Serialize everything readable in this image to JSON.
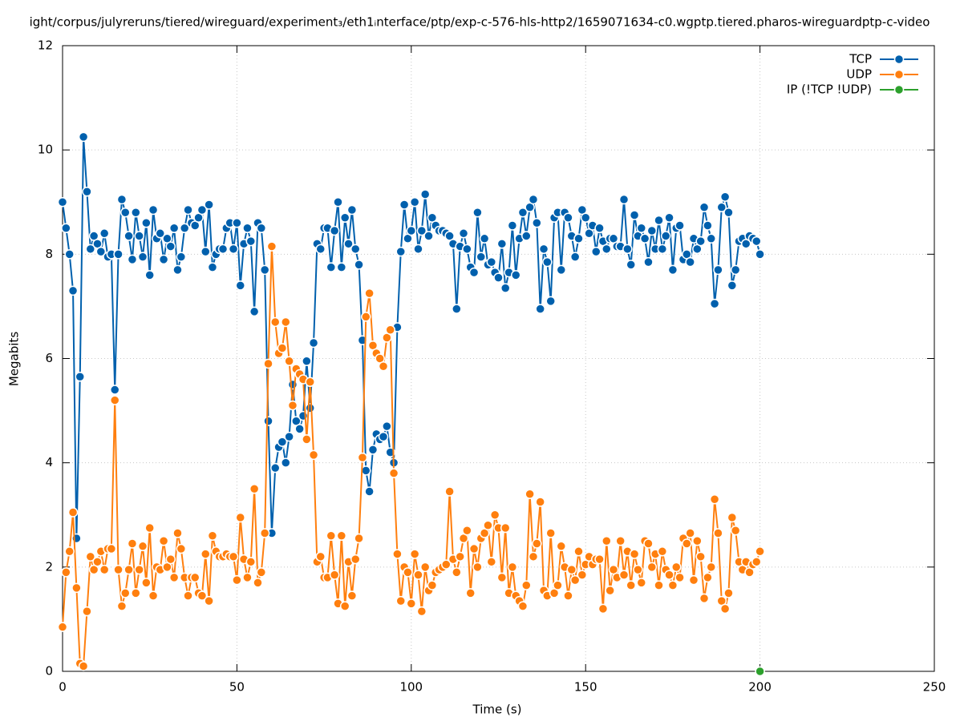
{
  "chart_data": {
    "type": "line",
    "title": "ight/corpus/julyreruns/tiered/wireguard/experiment₃/eth1ᵢnterface/ptp/exp-c-576-hls-http2/1659071634-c0.wgptp.tiered.pharos-wireguardptp-c-video",
    "xlabel": "Time (s)",
    "ylabel": "Megabits",
    "xlim": [
      0,
      250
    ],
    "xticks": [
      0,
      50,
      100,
      150,
      200,
      250
    ],
    "ylim": [
      0,
      12
    ],
    "yticks": [
      0,
      2,
      4,
      6,
      8,
      10,
      12
    ],
    "grid": true,
    "legend": "top right",
    "x": [
      0,
      1,
      2,
      3,
      4,
      5,
      6,
      7,
      8,
      9,
      10,
      11,
      12,
      13,
      14,
      15,
      16,
      17,
      18,
      19,
      20,
      21,
      22,
      23,
      24,
      25,
      26,
      27,
      28,
      29,
      30,
      31,
      32,
      33,
      34,
      35,
      36,
      37,
      38,
      39,
      40,
      41,
      42,
      43,
      44,
      45,
      46,
      47,
      48,
      49,
      50,
      51,
      52,
      53,
      54,
      55,
      56,
      57,
      58,
      59,
      60,
      61,
      62,
      63,
      64,
      65,
      66,
      67,
      68,
      69,
      70,
      71,
      72,
      73,
      74,
      75,
      76,
      77,
      78,
      79,
      80,
      81,
      82,
      83,
      84,
      85,
      86,
      87,
      88,
      89,
      90,
      91,
      92,
      93,
      94,
      95,
      96,
      97,
      98,
      99,
      100,
      101,
      102,
      103,
      104,
      105,
      106,
      107,
      108,
      109,
      110,
      111,
      112,
      113,
      114,
      115,
      116,
      117,
      118,
      119,
      120,
      121,
      122,
      123,
      124,
      125,
      126,
      127,
      128,
      129,
      130,
      131,
      132,
      133,
      134,
      135,
      136,
      137,
      138,
      139,
      140,
      141,
      142,
      143,
      144,
      145,
      146,
      147,
      148,
      149,
      150,
      151,
      152,
      153,
      154,
      155,
      156,
      157,
      158,
      159,
      160,
      161,
      162,
      163,
      164,
      165,
      166,
      167,
      168,
      169,
      170,
      171,
      172,
      173,
      174,
      175,
      176,
      177,
      178,
      179,
      180,
      181,
      182,
      183,
      184,
      185,
      186,
      187,
      188,
      189,
      190,
      191,
      192,
      193,
      194,
      195,
      196,
      197,
      198,
      199,
      200
    ],
    "series": [
      {
        "name": "TCP",
        "color": "#0060ad",
        "values": [
          9.0,
          8.5,
          8.0,
          7.3,
          2.55,
          5.65,
          10.25,
          9.2,
          8.1,
          8.35,
          8.2,
          8.05,
          8.4,
          7.95,
          8.0,
          5.4,
          8.0,
          9.05,
          8.8,
          8.35,
          7.9,
          8.8,
          8.35,
          7.95,
          8.6,
          7.6,
          8.85,
          8.3,
          8.4,
          7.9,
          8.3,
          8.15,
          8.5,
          7.7,
          7.95,
          8.5,
          8.85,
          8.6,
          8.55,
          8.7,
          8.85,
          8.05,
          8.95,
          7.75,
          8.0,
          8.1,
          8.1,
          8.5,
          8.6,
          8.1,
          8.6,
          7.4,
          8.2,
          8.5,
          8.25,
          6.9,
          8.6,
          8.5,
          7.7,
          4.8,
          2.65,
          3.9,
          4.3,
          4.4,
          4.0,
          4.5,
          5.5,
          4.8,
          4.65,
          4.9,
          5.95,
          5.05,
          6.3,
          8.2,
          8.1,
          8.5,
          8.5,
          7.75,
          8.45,
          9.0,
          7.75,
          8.7,
          8.2,
          8.85,
          8.1,
          7.8,
          6.35,
          3.85,
          3.45,
          4.25,
          4.55,
          4.45,
          4.5,
          4.7,
          4.2,
          4.0,
          6.6,
          8.05,
          8.95,
          8.3,
          8.45,
          9.0,
          8.1,
          8.45,
          9.15,
          8.35,
          8.7,
          8.55,
          8.45,
          8.45,
          8.4,
          8.35,
          8.2,
          6.95,
          8.15,
          8.4,
          8.1,
          7.75,
          7.65,
          8.8,
          7.95,
          8.3,
          7.8,
          7.85,
          7.65,
          7.55,
          8.2,
          7.35,
          7.65,
          8.55,
          7.6,
          8.3,
          8.8,
          8.35,
          8.9,
          9.05,
          8.6,
          6.95,
          8.1,
          7.85,
          7.1,
          8.7,
          8.8,
          7.7,
          8.8,
          8.7,
          8.35,
          7.95,
          8.3,
          8.85,
          8.7,
          8.4,
          8.55,
          8.05,
          8.5,
          8.25,
          8.1,
          8.3,
          8.3,
          8.15,
          8.15,
          9.05,
          8.1,
          7.8,
          8.75,
          8.35,
          8.5,
          8.3,
          7.85,
          8.45,
          8.1,
          8.65,
          8.1,
          8.35,
          8.7,
          7.7,
          8.5,
          8.55,
          7.9,
          8.0,
          7.85,
          8.3,
          8.1,
          8.25,
          8.9,
          8.55,
          8.3,
          7.05,
          7.7,
          8.9,
          9.1,
          8.8,
          7.4,
          7.7,
          8.25,
          8.3,
          8.2,
          8.35,
          8.3,
          8.25,
          8.0
        ]
      },
      {
        "name": "UDP",
        "color": "#ff7f0e",
        "values": [
          0.85,
          1.9,
          2.3,
          3.05,
          1.6,
          0.15,
          0.1,
          1.15,
          2.2,
          1.95,
          2.1,
          2.3,
          1.95,
          2.35,
          2.35,
          5.2,
          1.95,
          1.25,
          1.5,
          1.95,
          2.45,
          1.5,
          1.95,
          2.4,
          1.7,
          2.75,
          1.45,
          2.0,
          1.95,
          2.5,
          2.0,
          2.15,
          1.8,
          2.65,
          2.35,
          1.8,
          1.45,
          1.8,
          1.8,
          1.5,
          1.45,
          2.25,
          1.35,
          2.6,
          2.3,
          2.2,
          2.2,
          2.25,
          2.2,
          2.2,
          1.75,
          2.95,
          2.15,
          1.8,
          2.1,
          3.5,
          1.7,
          1.9,
          2.65,
          5.9,
          8.15,
          6.7,
          6.1,
          6.2,
          6.7,
          5.95,
          5.1,
          5.8,
          5.7,
          5.6,
          4.45,
          5.55,
          4.15,
          2.1,
          2.2,
          1.8,
          1.8,
          2.6,
          1.85,
          1.3,
          2.6,
          1.25,
          2.1,
          1.45,
          2.15,
          2.55,
          4.1,
          6.8,
          7.25,
          6.25,
          6.1,
          6.0,
          5.85,
          6.4,
          6.55,
          3.8,
          2.25,
          1.35,
          2.0,
          1.9,
          1.3,
          2.25,
          1.85,
          1.15,
          2.0,
          1.55,
          1.65,
          1.9,
          1.95,
          2.0,
          2.05,
          3.45,
          2.15,
          1.9,
          2.2,
          2.55,
          2.7,
          1.5,
          2.35,
          2.0,
          2.55,
          2.65,
          2.8,
          2.1,
          3.0,
          2.75,
          1.8,
          2.75,
          1.5,
          2.0,
          1.45,
          1.35,
          1.25,
          1.65,
          3.4,
          2.2,
          2.45,
          3.25,
          1.55,
          1.45,
          2.65,
          1.5,
          1.65,
          2.4,
          2.0,
          1.45,
          1.95,
          1.75,
          2.3,
          1.85,
          2.05,
          2.2,
          2.05,
          2.15,
          2.15,
          1.2,
          2.5,
          1.55,
          1.95,
          1.8,
          2.5,
          1.85,
          2.3,
          1.65,
          2.25,
          1.95,
          1.7,
          2.5,
          2.45,
          2.0,
          2.25,
          1.65,
          2.3,
          1.95,
          1.85,
          1.65,
          2.0,
          1.8,
          2.55,
          2.45,
          2.65,
          1.75,
          2.5,
          2.2,
          1.4,
          1.8,
          2.0,
          3.3,
          2.65,
          1.35,
          1.2,
          1.5,
          2.95,
          2.7,
          2.1,
          1.95,
          2.1,
          1.9,
          2.05,
          2.1,
          2.3
        ]
      },
      {
        "name": "IP (!TCP  !UDP)",
        "color": "#2ca02c",
        "x": [
          200
        ],
        "values": [
          0
        ]
      }
    ]
  }
}
